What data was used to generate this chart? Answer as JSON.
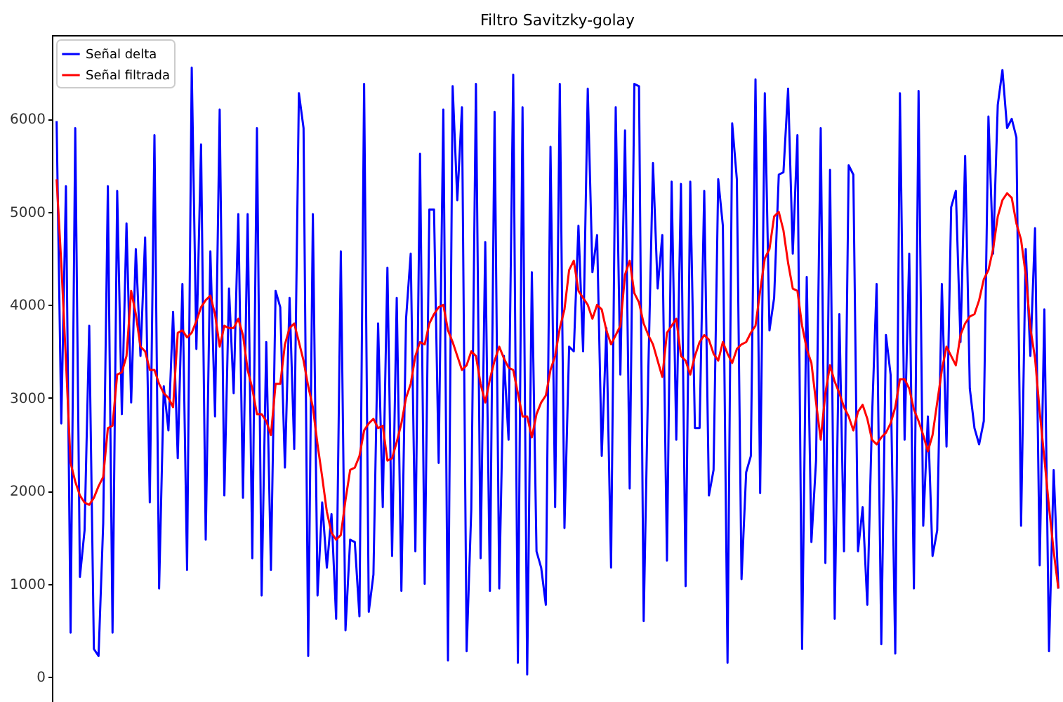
{
  "chart_data": {
    "type": "line",
    "title": "Filtro Savitzky-golay",
    "legend": "top left",
    "tick_labels": "y",
    "ylim": [
      -270,
      6900
    ],
    "yticks": [
      0,
      1000,
      2000,
      3000,
      4000,
      5000,
      6000
    ],
    "categories": [
      null,
      null,
      null,
      null,
      null,
      null,
      null,
      null,
      null,
      null,
      null,
      null,
      null,
      null,
      null,
      null,
      null,
      null,
      null,
      null,
      null,
      null,
      null,
      null,
      null,
      null,
      null,
      null,
      null,
      null,
      null,
      null,
      null,
      null,
      null,
      null,
      null,
      null,
      null,
      null,
      null,
      null,
      null,
      null,
      null,
      null,
      null,
      null,
      null,
      null,
      null,
      null,
      null,
      null,
      null,
      null,
      null,
      null,
      null,
      null,
      null,
      null,
      null,
      null,
      null,
      null,
      null,
      null,
      null,
      null,
      null,
      null,
      null,
      null,
      null,
      null,
      null,
      null,
      null,
      null,
      null,
      null,
      null,
      null,
      null,
      null,
      null,
      null,
      null,
      null,
      null,
      null,
      null,
      null,
      null,
      null,
      null,
      null,
      null,
      null,
      null,
      null,
      null,
      null,
      null,
      null,
      null,
      null,
      null,
      null,
      null,
      null,
      null,
      null,
      null,
      null,
      null,
      null,
      null,
      null,
      null,
      null,
      null,
      null,
      null,
      null,
      null,
      null,
      null,
      null,
      null,
      null,
      null,
      null,
      null,
      null,
      null,
      null,
      null,
      null,
      null,
      null,
      null,
      null,
      null,
      null,
      null,
      null,
      null,
      null,
      null,
      null,
      null,
      null,
      null,
      null,
      null,
      null,
      null,
      null,
      null,
      null,
      null,
      null,
      null,
      null,
      null,
      null,
      null,
      null,
      null,
      null,
      null,
      null,
      null,
      null,
      null,
      null,
      null,
      null,
      null,
      null,
      null,
      null,
      null,
      null,
      null,
      null,
      null,
      null,
      null,
      null,
      null,
      null,
      null,
      null,
      null,
      null,
      null,
      null,
      null,
      null,
      null,
      null,
      null,
      null,
      null,
      null,
      null,
      null,
      null,
      null,
      null,
      null,
      null,
      null
    ],
    "series": [
      {
        "name": "Señal delta",
        "color": "#0000ff",
        "values": [
          5975,
          2725,
          5275,
          475,
          5900,
          1075,
          1575,
          3775,
          300,
          225,
          1650,
          5275,
          475,
          5225,
          2825,
          4875,
          2950,
          4600,
          3450,
          4725,
          1875,
          5825,
          950,
          3125,
          2650,
          3925,
          2350,
          4225,
          1150,
          6550,
          3525,
          5725,
          1475,
          4575,
          2800,
          6100,
          1950,
          4175,
          3050,
          4975,
          1925,
          4975,
          1275,
          5900,
          875,
          3600,
          1150,
          4150,
          3975,
          2250,
          4075,
          2450,
          6275,
          5900,
          225,
          4975,
          875,
          1875,
          1175,
          1750,
          625,
          4575,
          500,
          1475,
          1450,
          650,
          6375,
          700,
          1100,
          3800,
          1825,
          4400,
          1300,
          4075,
          925,
          3850,
          4550,
          1350,
          5625,
          1000,
          5025,
          5025,
          2300,
          6100,
          175,
          6350,
          5125,
          6125,
          275,
          1800,
          6375,
          1275,
          4675,
          925,
          6075,
          950,
          3450,
          2550,
          6475,
          150,
          6125,
          25,
          4350,
          1350,
          1175,
          775,
          5700,
          1825,
          6375,
          1600,
          3550,
          3500,
          4850,
          3500,
          6325,
          4350,
          4750,
          2375,
          3750,
          1175,
          6125,
          3250,
          5875,
          2025,
          6375,
          6350,
          600,
          3300,
          5525,
          4175,
          4750,
          1250,
          5325,
          2550,
          5300,
          975,
          5325,
          2675,
          2675,
          5225,
          1950,
          2225,
          5350,
          4850,
          150,
          5950,
          5350,
          1050,
          2200,
          2375,
          6425,
          1975,
          6275,
          3725,
          4075,
          5400,
          5425,
          6325,
          4550,
          5825,
          300,
          4300,
          1450,
          2325,
          5900,
          1225,
          5450,
          625,
          3900,
          1350,
          5500,
          5400,
          1350,
          1825,
          775,
          2775,
          4225,
          350,
          3675,
          3250,
          250,
          6275,
          2550,
          4550,
          950,
          6300,
          1625,
          2800,
          1300,
          1575,
          4225,
          2475,
          5050,
          5225,
          3600,
          5600,
          3100,
          2675,
          2500,
          2750,
          6025,
          4550,
          6150,
          6525,
          5900,
          6000,
          5800,
          1625,
          4600,
          3450,
          4825,
          1200,
          3950,
          275,
          2225,
          950
        ]
      },
      {
        "name": "Señal filtrada",
        "color": "#ff0000",
        "values": [
          5350,
          4450,
          3400,
          2300,
          2100,
          1950,
          1875,
          1850,
          1925,
          2050,
          2150,
          2675,
          2700,
          3250,
          3275,
          3450,
          4150,
          3900,
          3550,
          3500,
          3300,
          3300,
          3150,
          3050,
          3000,
          2900,
          3700,
          3725,
          3650,
          3700,
          3825,
          3975,
          4050,
          4100,
          3900,
          3550,
          3775,
          3750,
          3750,
          3850,
          3675,
          3300,
          3100,
          2825,
          2825,
          2750,
          2600,
          3150,
          3150,
          3575,
          3750,
          3800,
          3600,
          3400,
          3125,
          2900,
          2500,
          2150,
          1775,
          1550,
          1475,
          1525,
          1900,
          2225,
          2250,
          2375,
          2650,
          2725,
          2775,
          2675,
          2700,
          2325,
          2350,
          2525,
          2725,
          3000,
          3150,
          3450,
          3600,
          3575,
          3800,
          3900,
          3975,
          4000,
          3725,
          3600,
          3450,
          3300,
          3350,
          3500,
          3450,
          3150,
          2950,
          3200,
          3400,
          3550,
          3425,
          3325,
          3300,
          3050,
          2800,
          2800,
          2575,
          2825,
          2950,
          3025,
          3300,
          3450,
          3750,
          3950,
          4375,
          4475,
          4150,
          4075,
          4000,
          3850,
          4000,
          3950,
          3725,
          3575,
          3675,
          3775,
          4325,
          4475,
          4125,
          4025,
          3800,
          3675,
          3575,
          3400,
          3225,
          3700,
          3775,
          3850,
          3450,
          3400,
          3250,
          3450,
          3600,
          3675,
          3625,
          3475,
          3400,
          3600,
          3475,
          3375,
          3525,
          3575,
          3600,
          3700,
          3775,
          4150,
          4500,
          4600,
          4950,
          5000,
          4800,
          4450,
          4175,
          4150,
          3775,
          3525,
          3375,
          2950,
          2550,
          3050,
          3350,
          3175,
          3050,
          2900,
          2800,
          2650,
          2850,
          2925,
          2775,
          2550,
          2500,
          2575,
          2625,
          2725,
          2900,
          3200,
          3200,
          3100,
          2875,
          2750,
          2600,
          2425,
          2600,
          2950,
          3300,
          3550,
          3450,
          3350,
          3675,
          3800,
          3875,
          3900,
          4050,
          4275,
          4375,
          4600,
          4950,
          5125,
          5200,
          5150,
          4875,
          4700,
          4325,
          3750,
          3425,
          2850,
          2350,
          1825,
          1350,
          950
        ]
      }
    ]
  }
}
